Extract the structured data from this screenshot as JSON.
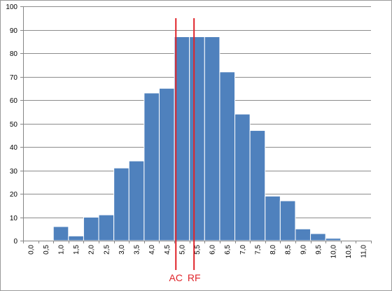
{
  "chart_data": {
    "type": "bar",
    "title": "",
    "xlabel": "",
    "ylabel": "",
    "categories": [
      "0,0",
      "0,5",
      "1,0",
      "1,5",
      "2,0",
      "2,5",
      "3,0",
      "3,5",
      "4,0",
      "4,5",
      "5,0",
      "5,5",
      "6,0",
      "6,5",
      "7,0",
      "7,5",
      "8,0",
      "8,5",
      "9,0",
      "9,5",
      "10,0",
      "10,5",
      "11,0"
    ],
    "values": [
      0,
      0,
      6,
      2,
      10,
      11,
      31,
      34,
      63,
      65,
      87,
      87,
      87,
      72,
      54,
      47,
      19,
      17,
      5,
      3,
      1,
      0,
      0
    ],
    "ylim": [
      0,
      100
    ],
    "yticks": [
      0,
      10,
      20,
      30,
      40,
      50,
      60,
      70,
      80,
      90,
      100
    ],
    "grid": true,
    "legend": "none",
    "bar_color": "#4f81bd",
    "bar_edge_color": "#ffffff",
    "grid_color": "#8c8c8c",
    "markers": [
      {
        "label": "AC",
        "x": 4.8,
        "color": "#e0242a"
      },
      {
        "label": "RF",
        "x": 5.4,
        "color": "#e0242a"
      }
    ]
  }
}
